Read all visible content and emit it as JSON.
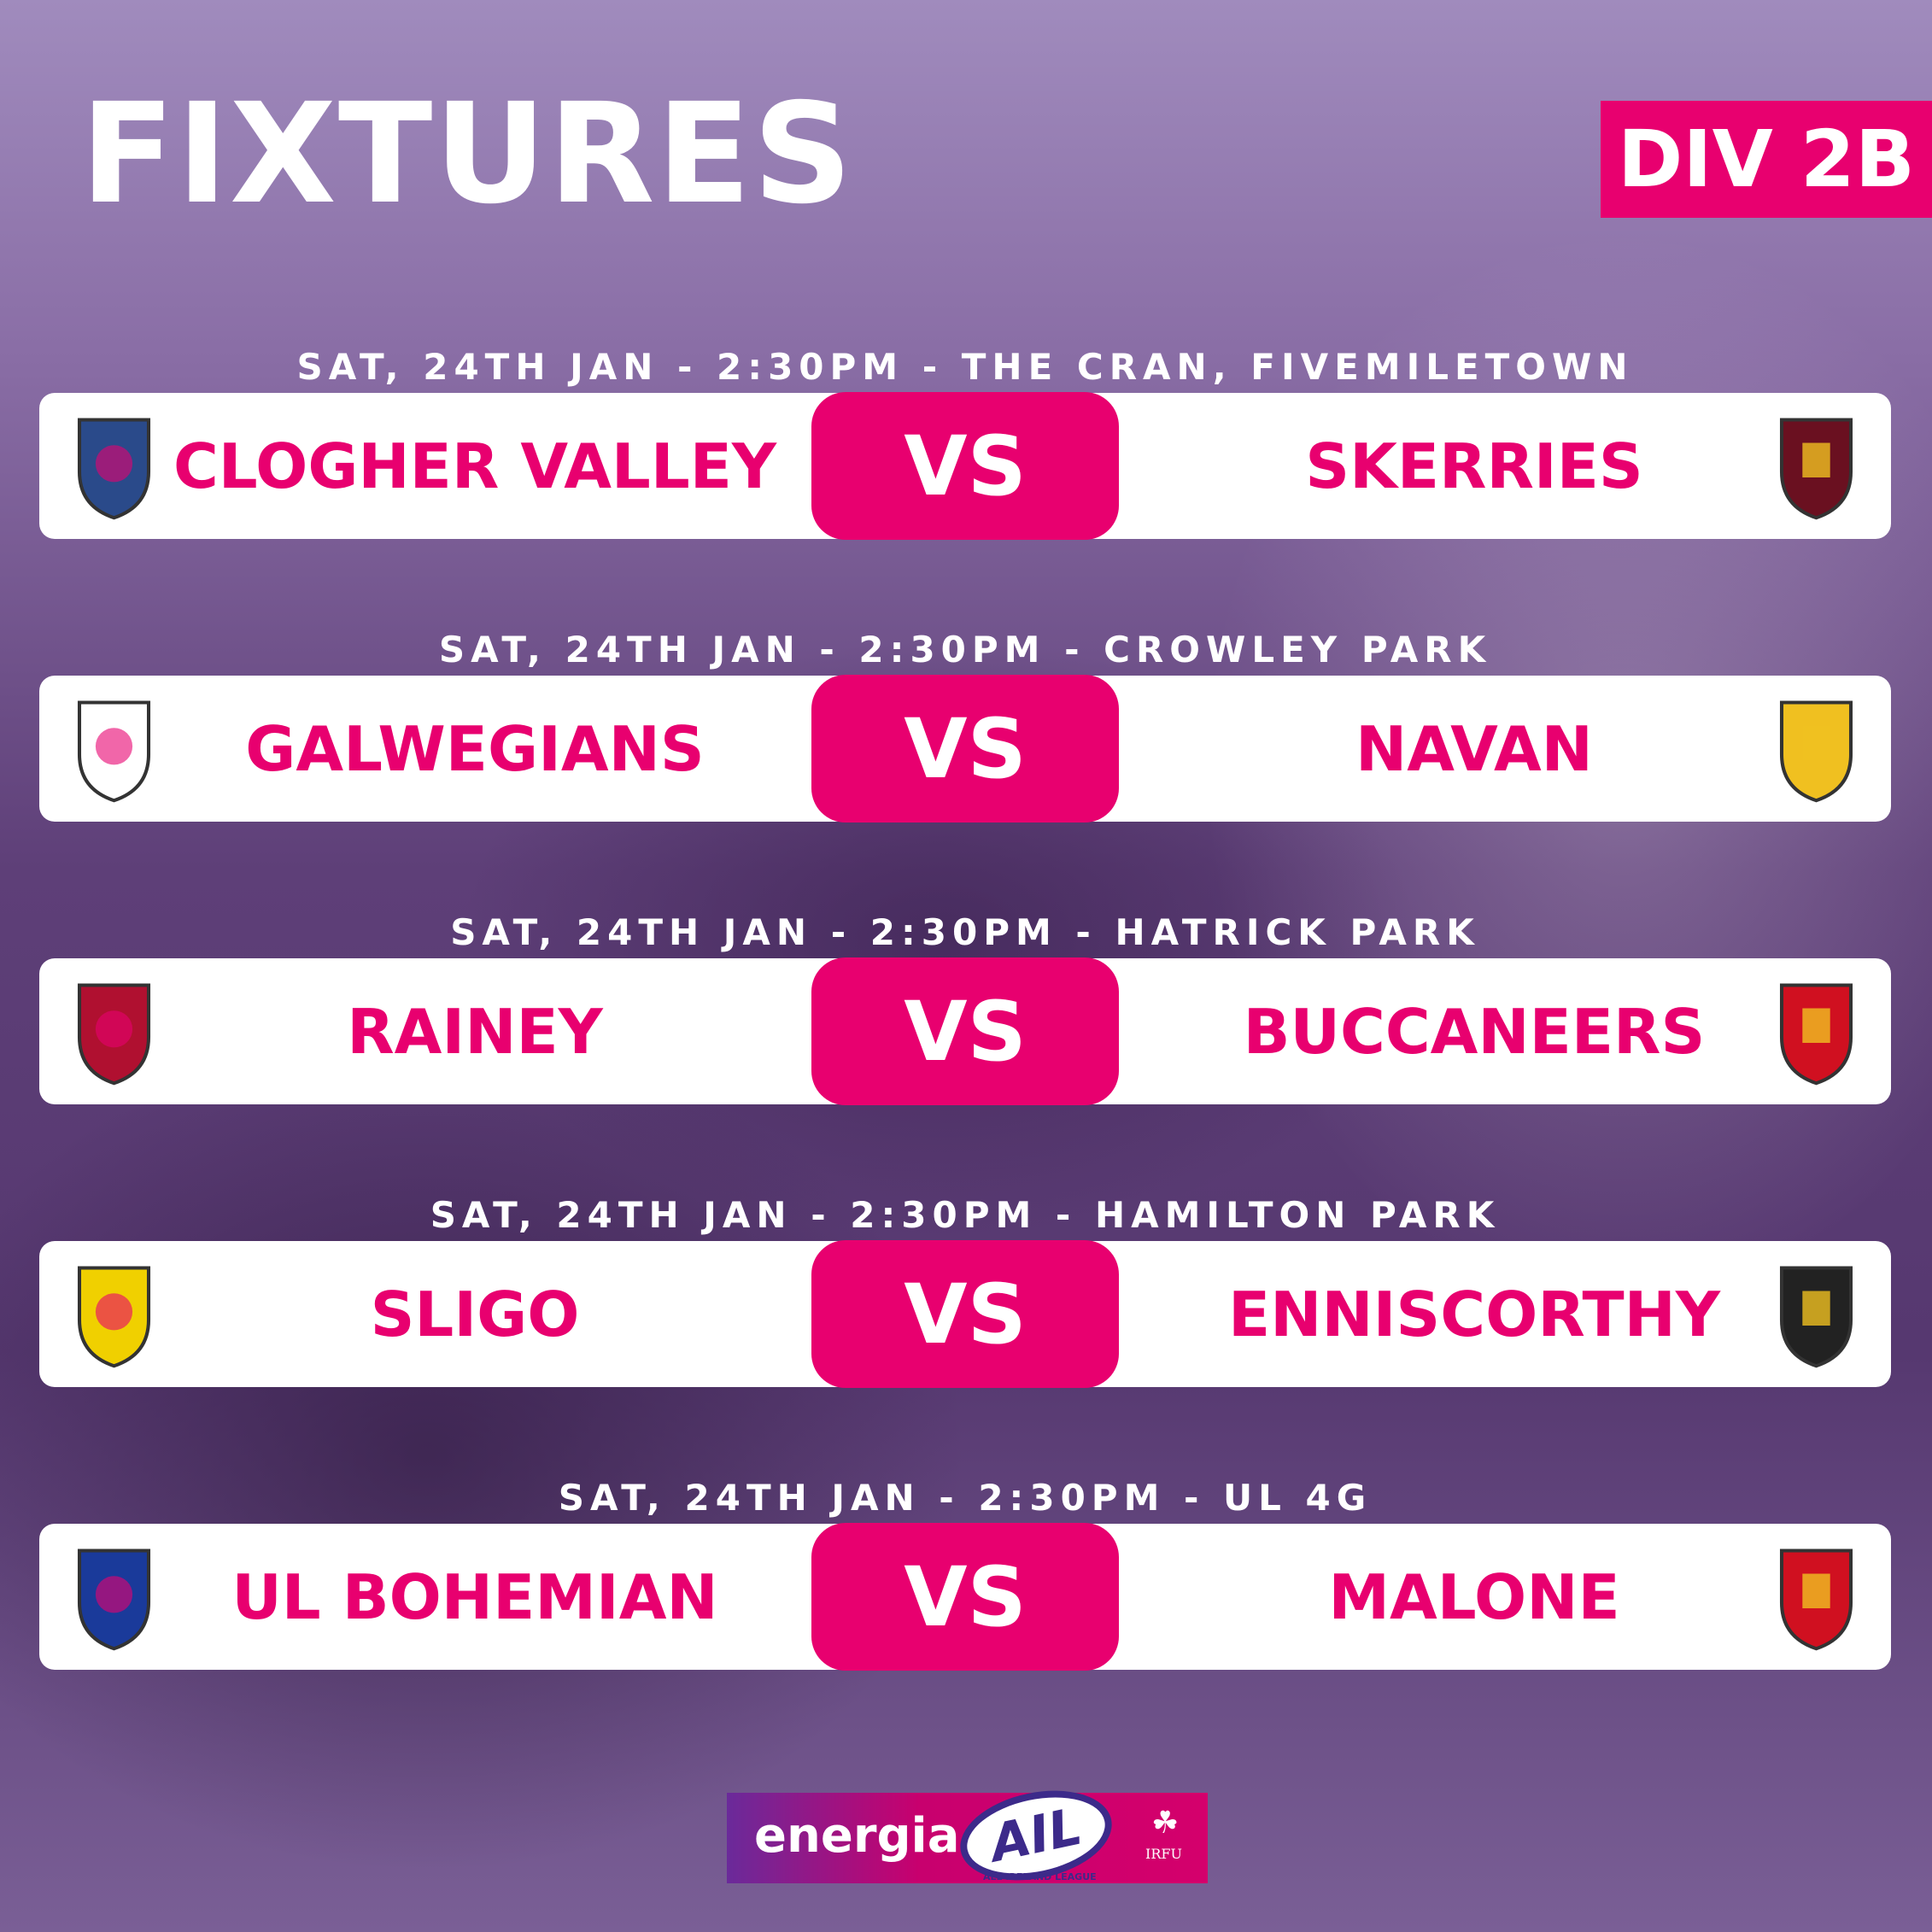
{
  "header": {
    "title": "FIXTURES",
    "division": "DIV 2B"
  },
  "vs_label": "VS",
  "fixtures": [
    {
      "date": "SAT, 24TH JAN - 2:30PM - THE CRAN, FIVEMILETOWN",
      "home": "CLOGHER VALLEY",
      "away": "SKERRIES",
      "home_crest": "clogher-valley-crest",
      "away_crest": "skerries-crest"
    },
    {
      "date": "SAT, 24TH JAN - 2:30PM - CROWLEY PARK",
      "home": "GALWEGIANS",
      "away": "NAVAN",
      "home_crest": "galwegians-crest",
      "away_crest": "navan-crest"
    },
    {
      "date": "SAT, 24TH JAN - 2:30PM - HATRICK PARK",
      "home": "RAINEY",
      "away": "BUCCANEERS",
      "home_crest": "rainey-crest",
      "away_crest": "buccaneers-crest"
    },
    {
      "date": "SAT, 24TH JAN - 2:30PM - HAMILTON PARK",
      "home": "SLIGO",
      "away": "ENNISCORTHY",
      "home_crest": "sligo-crest",
      "away_crest": "enniscorthy-crest"
    },
    {
      "date": "SAT, 24TH JAN - 2:30PM - UL 4G",
      "home": "UL BOHEMIAN",
      "away": "MALONE",
      "home_crest": "ul-bohemian-crest",
      "away_crest": "malone-crest"
    }
  ],
  "sponsor": {
    "energia": "energia",
    "ail": "AIL",
    "ail_sub": "ALL IRELAND LEAGUE",
    "irfu": "IRFU"
  },
  "colors": {
    "accent": "#e8006f",
    "background": "#6b4a88",
    "card": "#ffffff"
  }
}
